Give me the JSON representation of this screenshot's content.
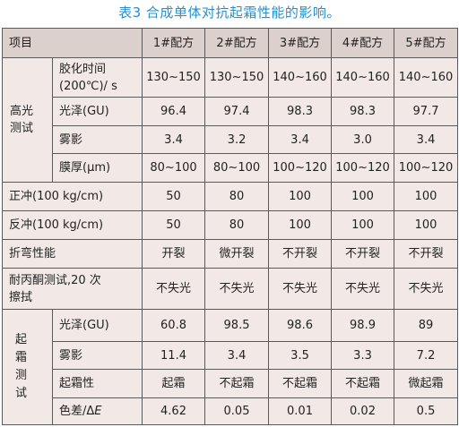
{
  "caption": "表3 合成单体对抗起霜性能的影响。",
  "header": {
    "item": "项目",
    "formulas": [
      "1#配方",
      "2#配方",
      "3#配方",
      "4#配方",
      "5#配方"
    ]
  },
  "groups": {
    "high_gloss_line1": "高光",
    "high_gloss_line2": "测试",
    "frost_line1": "起 霜",
    "frost_line2": "测试"
  },
  "rows": {
    "gel_time": {
      "label_line1": "胶化时间",
      "label_line2": "(200℃)/ s",
      "values": [
        "130~150",
        "130~150",
        "140~160",
        "140~160",
        "140~160"
      ]
    },
    "gloss": {
      "label": "光泽(GU)",
      "values": [
        "96.4",
        "97.4",
        "98.3",
        "98.3",
        "97.7"
      ]
    },
    "haze": {
      "label": "雾影",
      "values": [
        "3.4",
        "3.2",
        "3.4",
        "3.0",
        "3.4"
      ]
    },
    "thickness": {
      "label": "膜厚(μm)",
      "values": [
        "80~100",
        "80~100",
        "100~120",
        "100~120",
        "100~120"
      ]
    },
    "direct_impact": {
      "label": "正冲(100 kg/cm)",
      "values": [
        "50",
        "80",
        "100",
        "100",
        "100"
      ]
    },
    "reverse_impact": {
      "label": "反冲(100 kg/cm)",
      "values": [
        "50",
        "80",
        "100",
        "100",
        "100"
      ]
    },
    "bending": {
      "label": "折弯性能",
      "values": [
        "开裂",
        "微开裂",
        "不开裂",
        "不开裂",
        "不开裂"
      ]
    },
    "acetone_rub": {
      "label_line1": "耐丙酮测试,20 次",
      "label_line2": "擦拭",
      "values": [
        "不失光",
        "不失光",
        "不失光",
        "不失光",
        "不失光"
      ]
    },
    "frost_gloss": {
      "label": "光泽(GU)",
      "values": [
        "60.8",
        "98.5",
        "98.6",
        "98.9",
        "89"
      ]
    },
    "frost_haze": {
      "label": "雾影",
      "values": [
        "11.4",
        "3.4",
        "3.5",
        "3.3",
        "7.2"
      ]
    },
    "frosting": {
      "label": "起霜性",
      "values": [
        "起霜",
        "不起霜",
        "不起霜",
        "不起霜",
        "微起霜"
      ]
    },
    "color_diff": {
      "label_prefix": "色差/Δ",
      "label_var": "E",
      "values": [
        "4.62",
        "0.05",
        "0.01",
        "0.02",
        "0.5"
      ]
    }
  }
}
